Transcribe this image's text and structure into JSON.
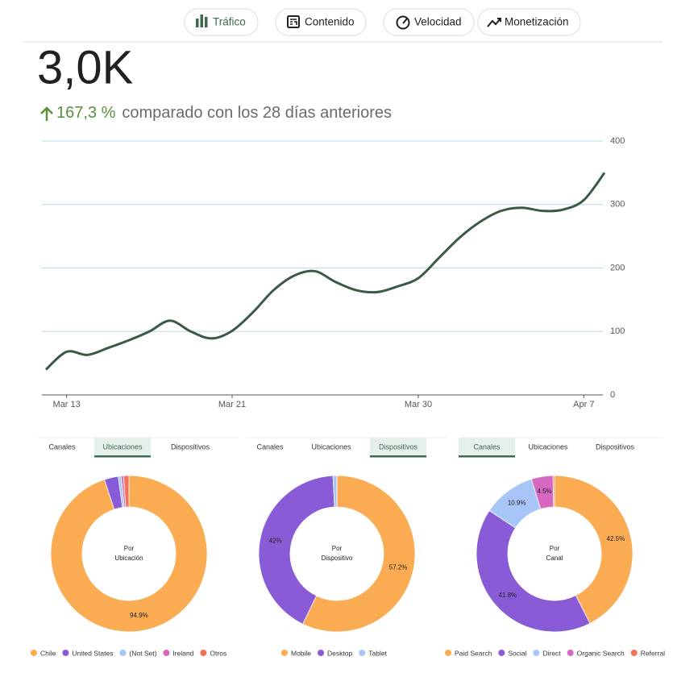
{
  "tabs": [
    "Tráfico",
    "Contenido",
    "Velocidad",
    "Monetización"
  ],
  "summary": {
    "value": "3,0K",
    "change": "167,3 %",
    "comparison": "comparado con los 28 días anteriores"
  },
  "chart_data": [
    {
      "type": "line",
      "categories": [
        null,
        "Mar 13",
        null,
        null,
        null,
        null,
        null,
        null,
        null,
        "Mar 21",
        null,
        null,
        null,
        null,
        null,
        null,
        null,
        null,
        "Mar 30",
        null,
        null,
        null,
        null,
        null,
        null,
        null,
        "Apr 7",
        null
      ],
      "values": [
        40,
        68,
        63,
        74,
        86,
        100,
        117,
        100,
        89,
        101,
        130,
        165,
        188,
        195,
        178,
        165,
        162,
        171,
        184,
        216,
        248,
        273,
        290,
        295,
        290,
        292,
        307,
        350
      ],
      "color": "#3b5a45",
      "ylim": [
        0,
        400
      ],
      "yticks": [
        0,
        100,
        200,
        300,
        400
      ],
      "grid": true
    },
    {
      "type": "pie",
      "tabs": [
        "Canales",
        "Ubicaciones",
        "Dispositivos"
      ],
      "active_tab": 1,
      "center_label": [
        "Por",
        "Ubicación"
      ],
      "categories": [
        "Chile",
        "United States",
        "(Not Set)",
        "Ireland",
        "Otros"
      ],
      "values": [
        94.9,
        2.9,
        0.6,
        0.5,
        1.1
      ],
      "value_labels": [
        "94.9%",
        null,
        null,
        null,
        null
      ],
      "colors": [
        "#fbac52",
        "#8a5bd6",
        "#a7c6f7",
        "#d768c0",
        "#f0735a"
      ]
    },
    {
      "type": "pie",
      "tabs": [
        "Canales",
        "Ubicaciones",
        "Dispositivos"
      ],
      "active_tab": 2,
      "center_label": [
        "Por",
        "Dispositivo"
      ],
      "categories": [
        "Mobile",
        "Desktop",
        "Tablet"
      ],
      "values": [
        57.2,
        42,
        0.8
      ],
      "value_labels": [
        "57.2%",
        "42%",
        null
      ],
      "colors": [
        "#fbac52",
        "#8a5bd6",
        "#a7c6f7"
      ]
    },
    {
      "type": "pie",
      "tabs": [
        "Canales",
        "Ubicaciones",
        "Dispositivos"
      ],
      "active_tab": 0,
      "center_label": [
        "Por",
        "Canal"
      ],
      "categories": [
        "Paid Search",
        "Social",
        "Direct",
        "Organic Search",
        "Referral"
      ],
      "values": [
        42.5,
        41.8,
        10.9,
        4.5,
        0.3
      ],
      "value_labels": [
        "42.5%",
        "41.8%",
        "10.9%",
        "4.5%",
        null
      ],
      "colors": [
        "#fbac52",
        "#8a5bd6",
        "#a7c6f7",
        "#d768c0",
        "#f0735a"
      ]
    }
  ]
}
